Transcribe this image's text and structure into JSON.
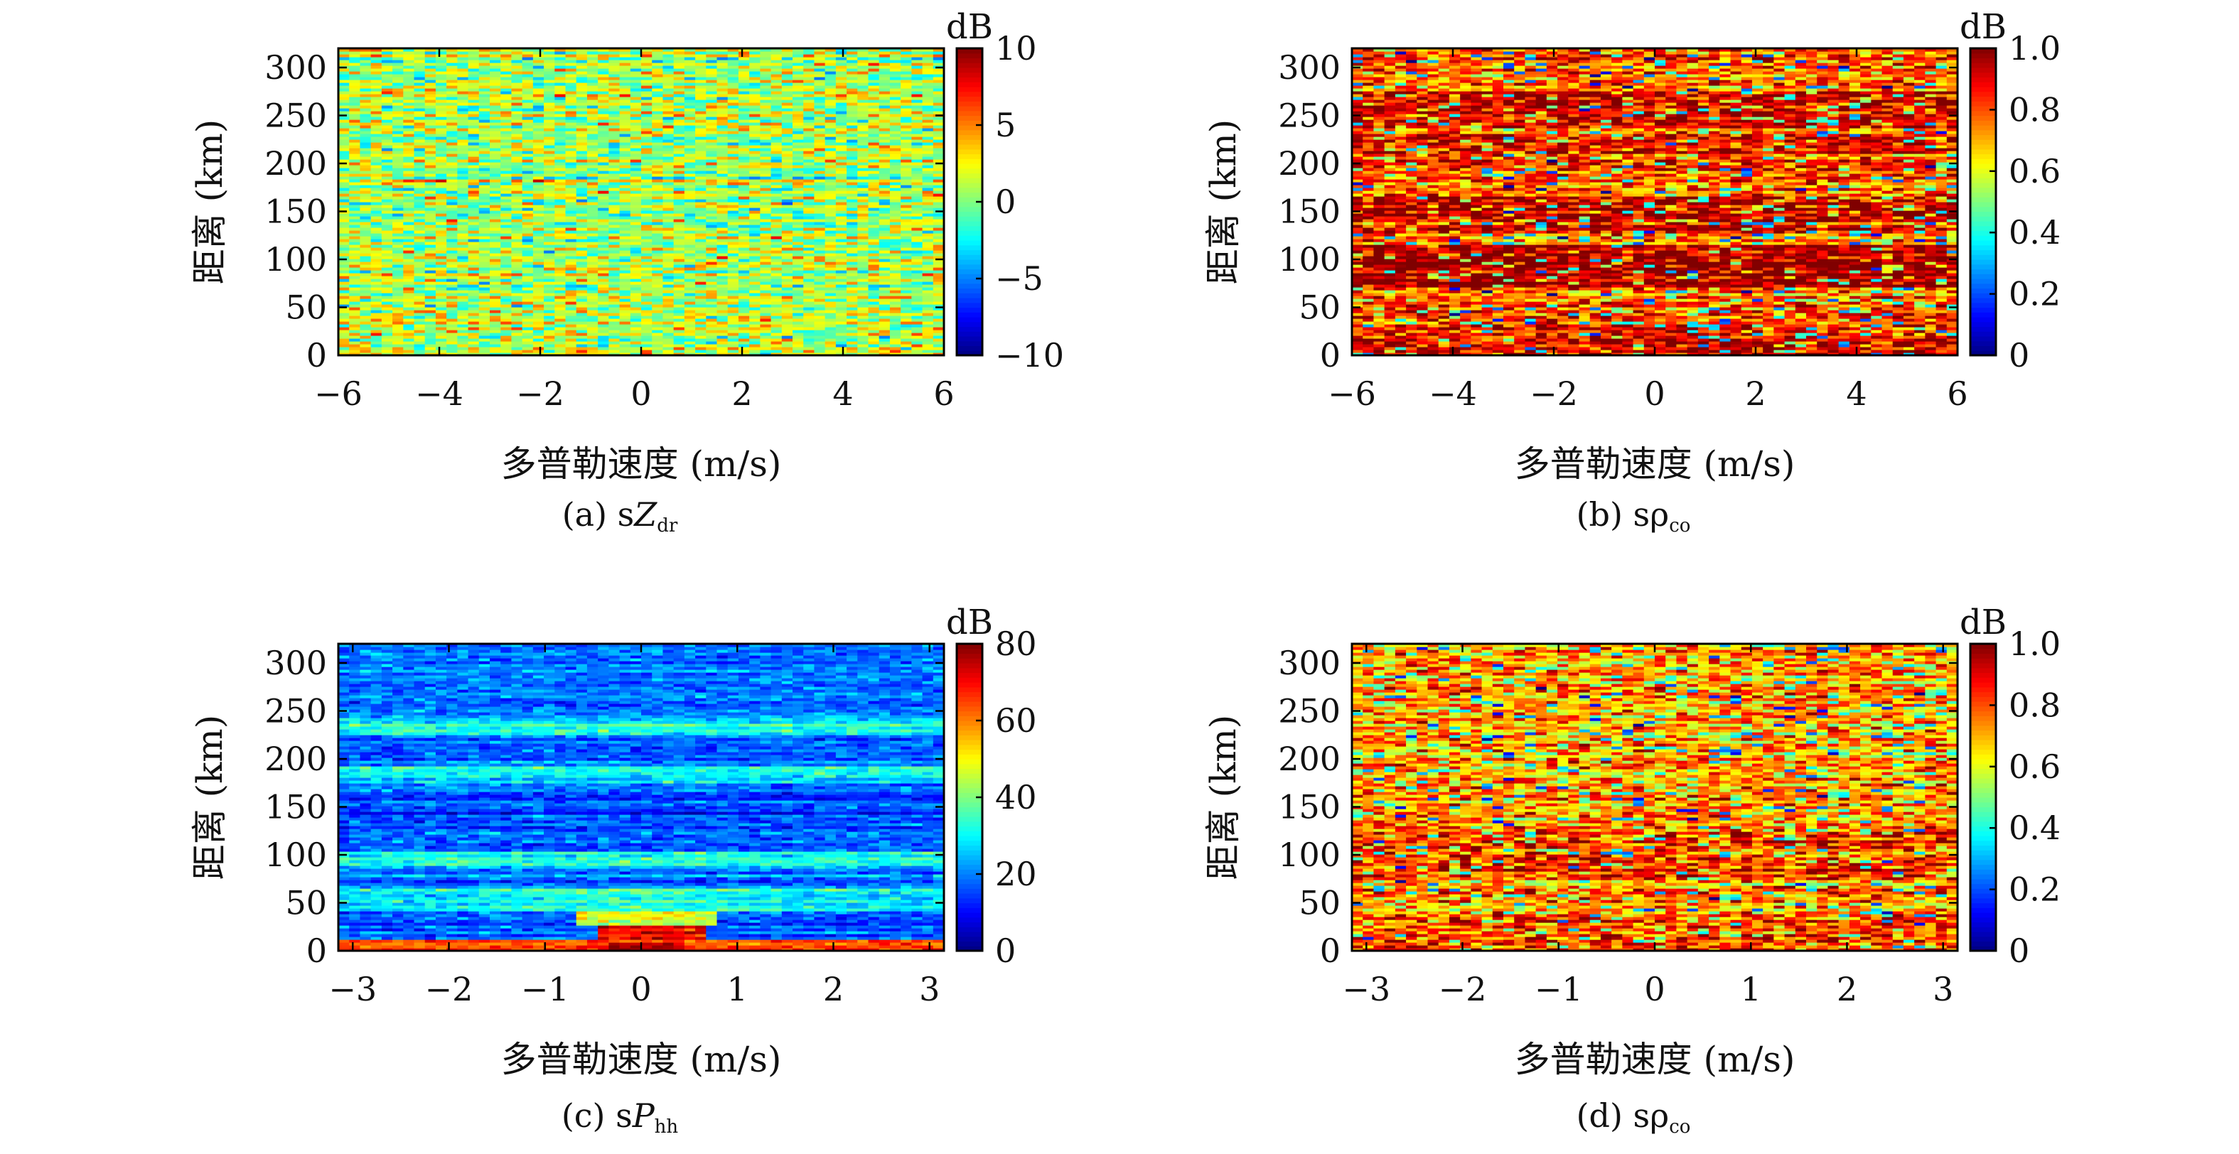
{
  "figure": {
    "panels": [
      {
        "id": "a",
        "caption_prefix": "(a) s",
        "caption_symbol": "Z",
        "caption_symbol_italic": true,
        "caption_subscript": "dr",
        "ylabel": "距离 (km)",
        "xlabel": "多普勒速度 (m/s)",
        "colorbar_unit": "dB",
        "colorbar_ticks": [
          "10",
          "5",
          "0",
          "−5",
          "−10"
        ],
        "colorbar_range": [
          -10,
          10
        ],
        "colormap": "jet",
        "pattern": "zdr"
      },
      {
        "id": "b",
        "caption_prefix": "(b) s",
        "caption_symbol": "ρ",
        "caption_symbol_italic": false,
        "caption_subscript": "co",
        "ylabel": "距离 (km)",
        "xlabel": "多普勒速度 (m/s)",
        "colorbar_unit": "dB",
        "colorbar_ticks": [
          "1.0",
          "0.8",
          "0.6",
          "0.4",
          "0.2",
          "0"
        ],
        "colorbar_range": [
          0,
          1
        ],
        "colormap": "jet",
        "pattern": "rho_b"
      },
      {
        "id": "c",
        "caption_prefix": "(c) s",
        "caption_symbol": "P",
        "caption_symbol_italic": true,
        "caption_subscript": "hh",
        "ylabel": "距离 (km)",
        "xlabel": "多普勒速度 (m/s)",
        "colorbar_unit": "dB",
        "colorbar_ticks": [
          "80",
          "60",
          "40",
          "20",
          "0"
        ],
        "colorbar_range": [
          0,
          80
        ],
        "colormap": "jet",
        "pattern": "phh"
      },
      {
        "id": "d",
        "caption_prefix": "(d) s",
        "caption_symbol": "ρ",
        "caption_symbol_italic": false,
        "caption_subscript": "co",
        "ylabel": "距离 (km)",
        "xlabel": "多普勒速度 (m/s)",
        "colorbar_unit": "dB",
        "colorbar_ticks": [
          "1.0",
          "0.8",
          "0.6",
          "0.4",
          "0.2",
          "0"
        ],
        "colorbar_range": [
          0,
          1
        ],
        "colormap": "jet",
        "pattern": "rho_d"
      }
    ]
  },
  "chart_data": [
    {
      "type": "heatmap",
      "title": "",
      "xlabel": "多普勒速度 (m/s)",
      "ylabel": "距离 (km)",
      "x_ticks": [
        "−6",
        "−4",
        "−2",
        "0",
        "2",
        "4",
        "6"
      ],
      "y_ticks": [
        "0",
        "50",
        "100",
        "150",
        "200",
        "250",
        "300"
      ],
      "xlim": [
        -6,
        6
      ],
      "ylim": [
        0,
        320
      ],
      "colorbar": {
        "unit": "dB",
        "range": [
          -10,
          10
        ],
        "ticks": [
          10,
          5,
          0,
          -5,
          -10
        ]
      },
      "caption": "(a) sZdr"
    },
    {
      "type": "heatmap",
      "title": "",
      "xlabel": "多普勒速度 (m/s)",
      "ylabel": "距离 (km)",
      "x_ticks": [
        "−6",
        "−4",
        "−2",
        "0",
        "2",
        "4",
        "6"
      ],
      "y_ticks": [
        "0",
        "50",
        "100",
        "150",
        "200",
        "250",
        "300"
      ],
      "xlim": [
        -6,
        6
      ],
      "ylim": [
        0,
        320
      ],
      "colorbar": {
        "unit": "dB",
        "range": [
          0,
          1
        ],
        "ticks": [
          1.0,
          0.8,
          0.6,
          0.4,
          0.2,
          0
        ]
      },
      "caption": "(b) sρco"
    },
    {
      "type": "heatmap",
      "title": "",
      "xlabel": "多普勒速度 (m/s)",
      "ylabel": "距离 (km)",
      "x_ticks": [
        "−3",
        "−2",
        "−1",
        "0",
        "1",
        "2",
        "3"
      ],
      "y_ticks": [
        "0",
        "50",
        "100",
        "150",
        "200",
        "250",
        "300"
      ],
      "xlim": [
        -3.15,
        3.15
      ],
      "ylim": [
        0,
        320
      ],
      "colorbar": {
        "unit": "dB",
        "range": [
          0,
          80
        ],
        "ticks": [
          80,
          60,
          40,
          20,
          0
        ]
      },
      "caption": "(c) sPhh"
    },
    {
      "type": "heatmap",
      "title": "",
      "xlabel": "多普勒速度 (m/s)",
      "ylabel": "距离 (km)",
      "x_ticks": [
        "−3",
        "−2",
        "−1",
        "0",
        "1",
        "2",
        "3"
      ],
      "y_ticks": [
        "0",
        "50",
        "100",
        "150",
        "200",
        "250",
        "300"
      ],
      "xlim": [
        -3.15,
        3.15
      ],
      "ylim": [
        0,
        320
      ],
      "colorbar": {
        "unit": "dB",
        "range": [
          0,
          1
        ],
        "ticks": [
          1.0,
          0.8,
          0.6,
          0.4,
          0.2,
          0
        ]
      },
      "caption": "(d) sρco"
    }
  ]
}
